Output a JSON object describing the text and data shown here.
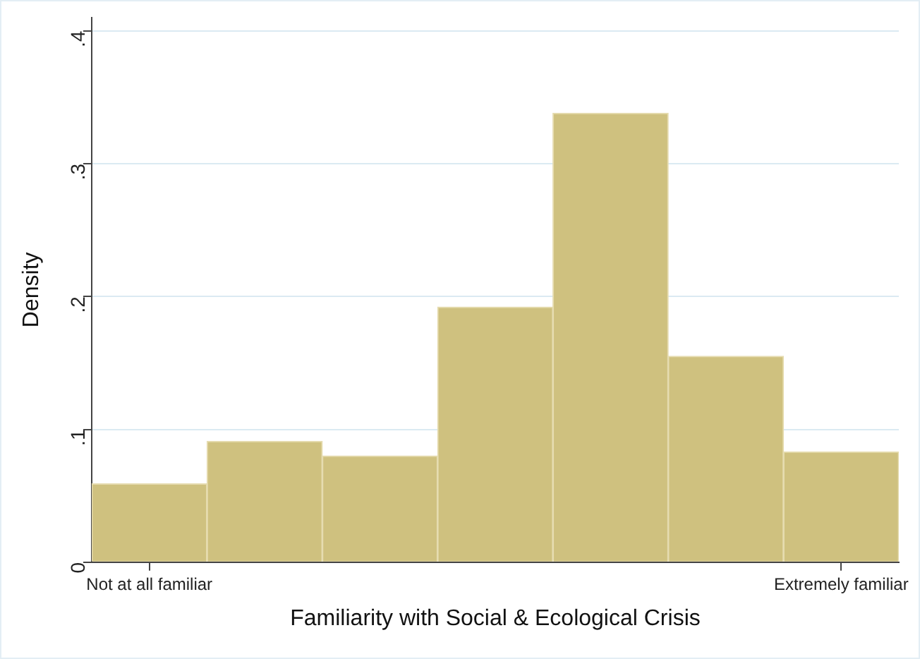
{
  "chart_data": {
    "type": "bar",
    "xlabel": "Familiarity with Social & Ecological Crisis",
    "ylabel": "Density",
    "categories": [
      "Not at all familiar",
      null,
      null,
      null,
      null,
      null,
      "Extremely familiar"
    ],
    "values": [
      0.059,
      0.091,
      0.08,
      0.192,
      0.338,
      0.155,
      0.083
    ],
    "color": "#cfc17f",
    "ylim": [
      0,
      0.41
    ],
    "yticks": [
      0,
      {
        "value": 0.1,
        "label": ".1"
      },
      {
        "value": 0.2,
        "label": ".2"
      },
      {
        "value": 0.3,
        "label": ".3"
      },
      {
        "value": 0.4,
        "label": ".4"
      }
    ],
    "grid": "y"
  }
}
